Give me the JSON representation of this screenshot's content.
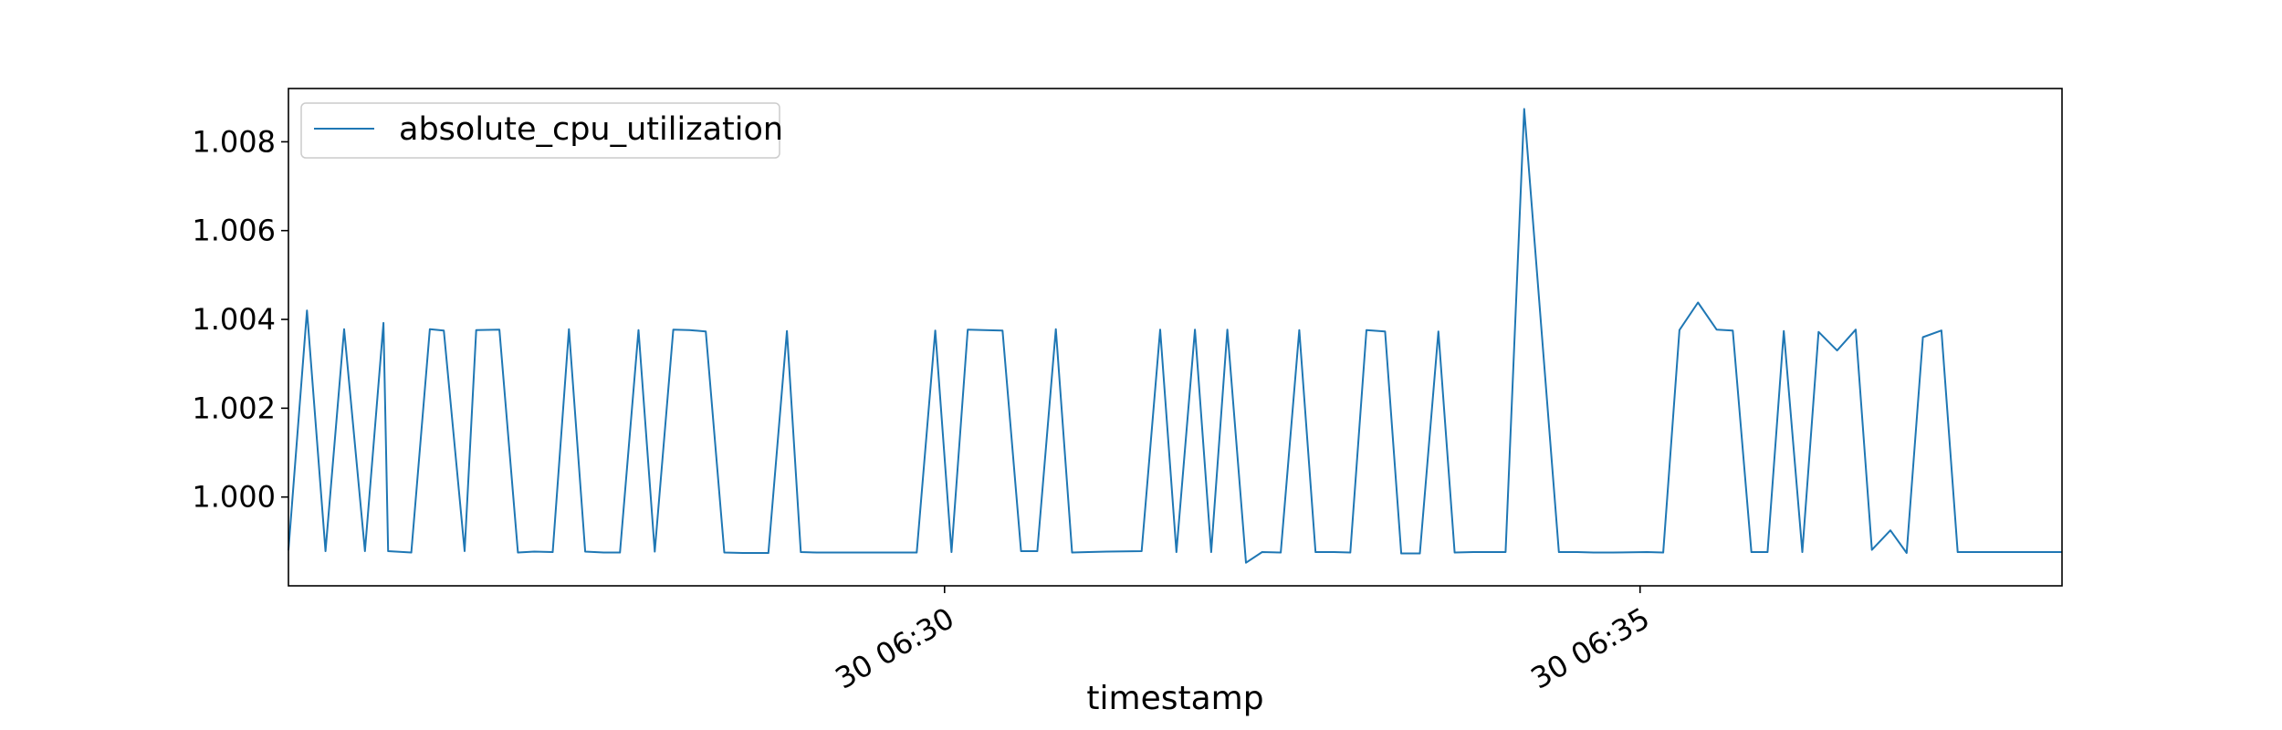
{
  "chart_data": {
    "type": "line",
    "title": "",
    "xlabel": "timestamp",
    "ylabel": "",
    "legend": {
      "placement": "top-left",
      "entries": [
        "absolute_cpu_utilization"
      ]
    },
    "grid": false,
    "x_axis": {
      "type": "datetime",
      "range": [
        "30 06:25:17",
        "30 06:38:02"
      ],
      "ticks": [
        {
          "value": "30 06:30",
          "label": "30 06:30"
        },
        {
          "value": "30 06:35",
          "label": "30 06:35"
        }
      ]
    },
    "y_axis": {
      "range": [
        0.998,
        1.0092
      ],
      "ticks": [
        {
          "value": 1.0,
          "label": "1.000"
        },
        {
          "value": 1.002,
          "label": "1.002"
        },
        {
          "value": 1.004,
          "label": "1.004"
        },
        {
          "value": 1.006,
          "label": "1.006"
        },
        {
          "value": 1.008,
          "label": "1.008"
        }
      ]
    },
    "series": [
      {
        "name": "absolute_cpu_utilization",
        "color": "#1f77b4",
        "x": [
          "30 06:25:17",
          "30 06:25:25",
          "30 06:25:33",
          "30 06:25:41",
          "30 06:25:50",
          "30 06:25:58",
          "30 06:26:00",
          "30 06:26:10",
          "30 06:26:18",
          "30 06:26:24",
          "30 06:26:33",
          "30 06:26:38",
          "30 06:26:48",
          "30 06:26:56",
          "30 06:27:03",
          "30 06:27:11",
          "30 06:27:18",
          "30 06:27:25",
          "30 06:27:33",
          "30 06:27:40",
          "30 06:27:48",
          "30 06:27:55",
          "30 06:28:03",
          "30 06:28:10",
          "30 06:28:17",
          "30 06:28:25",
          "30 06:28:33",
          "30 06:28:44",
          "30 06:28:52",
          "30 06:28:58",
          "30 06:29:05",
          "30 06:29:13",
          "30 06:29:20",
          "30 06:29:33",
          "30 06:29:48",
          "30 06:29:56",
          "30 06:30:03",
          "30 06:30:10",
          "30 06:30:17",
          "30 06:30:25",
          "30 06:30:33",
          "30 06:30:40",
          "30 06:30:48",
          "30 06:30:55",
          "30 06:31:02",
          "30 06:31:10",
          "30 06:31:25",
          "30 06:31:33",
          "30 06:31:40",
          "30 06:31:48",
          "30 06:31:55",
          "30 06:32:02",
          "30 06:32:10",
          "30 06:32:17",
          "30 06:32:25",
          "30 06:32:33",
          "30 06:32:40",
          "30 06:32:48",
          "30 06:32:55",
          "30 06:33:02",
          "30 06:33:10",
          "30 06:33:17",
          "30 06:33:25",
          "30 06:33:33",
          "30 06:33:40",
          "30 06:33:48",
          "30 06:33:55",
          "30 06:34:02",
          "30 06:34:10",
          "30 06:34:25",
          "30 06:34:33",
          "30 06:34:40",
          "30 06:34:48",
          "30 06:35:03",
          "30 06:35:10",
          "30 06:35:17",
          "30 06:35:25",
          "30 06:35:33",
          "30 06:35:40",
          "30 06:35:48",
          "30 06:35:55",
          "30 06:36:02",
          "30 06:36:10",
          "30 06:36:17",
          "30 06:36:25",
          "30 06:36:33",
          "30 06:36:40",
          "30 06:36:48",
          "30 06:36:55",
          "30 06:37:02",
          "30 06:37:10",
          "30 06:37:17",
          "30 06:37:25",
          "30 06:37:33",
          "30 06:37:40",
          "30 06:37:48",
          "30 06:38:02"
        ],
        "y": [
          0.9988,
          1.0042,
          0.99878,
          1.00378,
          0.99878,
          1.00392,
          0.99878,
          0.99875,
          1.00378,
          1.00375,
          0.99878,
          1.00376,
          1.00377,
          0.99875,
          0.99877,
          0.99876,
          1.00378,
          0.99877,
          0.99875,
          0.99875,
          1.00376,
          0.99877,
          1.00377,
          1.00376,
          1.00373,
          0.99875,
          0.99874,
          0.99874,
          1.00374,
          0.99876,
          0.99875,
          0.99875,
          0.99875,
          0.99875,
          0.99875,
          1.00375,
          0.99876,
          1.00377,
          1.00376,
          1.00375,
          0.99878,
          0.99878,
          1.00378,
          0.99875,
          0.99876,
          0.99877,
          0.99878,
          1.00377,
          0.99876,
          1.00377,
          0.99876,
          1.00377,
          0.99852,
          0.99876,
          0.99875,
          1.00376,
          0.99876,
          0.99876,
          0.99875,
          1.00376,
          1.00373,
          0.99873,
          0.99873,
          1.00373,
          0.99875,
          0.99876,
          0.99876,
          0.99876,
          1.00874,
          0.99876,
          0.99876,
          0.99875,
          0.99875,
          0.99876,
          0.99875,
          1.00376,
          1.00438,
          1.00377,
          1.00375,
          0.99876,
          0.99876,
          1.00374,
          0.99876,
          1.00372,
          1.0033,
          1.00377,
          0.99881,
          0.99925,
          0.99874,
          1.0036,
          1.00375,
          0.99876,
          0.99876,
          0.99876,
          0.99876,
          0.99876,
          0.99876
        ]
      }
    ]
  }
}
